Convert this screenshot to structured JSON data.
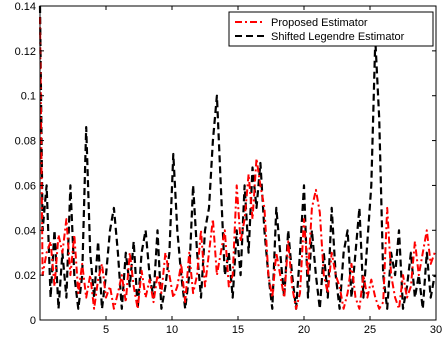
{
  "chart_data": {
    "type": "line",
    "title": "",
    "xlabel": "",
    "ylabel": "",
    "xlim": [
      0,
      30
    ],
    "ylim": [
      0,
      0.14
    ],
    "xticks": [
      5,
      10,
      15,
      20,
      25,
      30
    ],
    "yticks": [
      0,
      0.02,
      0.04,
      0.06,
      0.08,
      0.1,
      0.12,
      0.14
    ],
    "grid": false,
    "legend_position": "top-right",
    "series": [
      {
        "name": "Proposed Estimator",
        "color": "#ff0000",
        "dash": "dash-dot",
        "x": [
          0,
          0.2,
          0.5,
          0.8,
          1.1,
          1.4,
          1.7,
          2.0,
          2.3,
          2.6,
          2.9,
          3.2,
          3.5,
          3.8,
          4.1,
          4.4,
          4.7,
          5.0,
          5.3,
          5.6,
          5.9,
          6.2,
          6.5,
          6.8,
          7.1,
          7.4,
          7.7,
          8.0,
          8.3,
          8.6,
          8.9,
          9.2,
          9.5,
          9.8,
          10.1,
          10.4,
          10.7,
          11.0,
          11.3,
          11.6,
          11.9,
          12.2,
          12.5,
          12.8,
          13.1,
          13.4,
          13.7,
          14.0,
          14.3,
          14.6,
          14.9,
          15.2,
          15.5,
          15.8,
          16.1,
          16.4,
          16.7,
          17.0,
          17.3,
          17.6,
          17.9,
          18.2,
          18.5,
          18.8,
          19.1,
          19.4,
          19.7,
          20.0,
          20.3,
          20.6,
          20.9,
          21.2,
          21.5,
          21.8,
          22.1,
          22.4,
          22.7,
          23.0,
          23.3,
          23.6,
          23.9,
          24.2,
          24.5,
          24.8,
          25.1,
          25.4,
          25.7,
          26.0,
          26.3,
          26.6,
          26.9,
          27.2,
          27.5,
          27.8,
          28.1,
          28.4,
          28.7,
          29.0,
          29.3,
          29.6,
          29.9
        ],
        "y": [
          0.135,
          0.02,
          0.03,
          0.035,
          0.015,
          0.038,
          0.03,
          0.045,
          0.02,
          0.038,
          0.012,
          0.025,
          0.01,
          0.02,
          0.005,
          0.018,
          0.025,
          0.01,
          0.015,
          0.005,
          0.012,
          0.02,
          0.008,
          0.03,
          0.015,
          0.005,
          0.022,
          0.01,
          0.018,
          0.008,
          0.02,
          0.012,
          0.03,
          0.02,
          0.01,
          0.015,
          0.025,
          0.008,
          0.03,
          0.012,
          0.02,
          0.04,
          0.015,
          0.03,
          0.045,
          0.02,
          0.03,
          0.04,
          0.015,
          0.02,
          0.06,
          0.035,
          0.045,
          0.065,
          0.045,
          0.072,
          0.06,
          0.05,
          0.02,
          0.01,
          0.03,
          0.02,
          0.01,
          0.035,
          0.015,
          0.005,
          0.012,
          0.045,
          0.02,
          0.05,
          0.058,
          0.048,
          0.02,
          0.012,
          0.03,
          0.02,
          0.015,
          0.005,
          0.012,
          0.025,
          0.01,
          0.005,
          0.02,
          0.01,
          0.018,
          0.01,
          0.005,
          0.008,
          0.05,
          0.02,
          0.01,
          0.005,
          0.02,
          0.01,
          0.015,
          0.035,
          0.02,
          0.03,
          0.04,
          0.025,
          0.03
        ]
      },
      {
        "name": "Shifted Legendre Estimator",
        "color": "#000000",
        "dash": "dashed",
        "x": [
          0,
          0.2,
          0.5,
          0.8,
          1.1,
          1.4,
          1.7,
          2.0,
          2.3,
          2.6,
          2.9,
          3.2,
          3.5,
          3.8,
          4.1,
          4.4,
          4.7,
          5.0,
          5.3,
          5.6,
          5.9,
          6.2,
          6.5,
          6.8,
          7.1,
          7.4,
          7.7,
          8.0,
          8.3,
          8.6,
          8.9,
          9.2,
          9.5,
          9.8,
          10.1,
          10.4,
          10.7,
          11.0,
          11.3,
          11.6,
          11.9,
          12.2,
          12.5,
          12.8,
          13.1,
          13.4,
          13.7,
          14.0,
          14.3,
          14.6,
          14.9,
          15.2,
          15.5,
          15.8,
          16.1,
          16.4,
          16.7,
          17.0,
          17.3,
          17.6,
          17.9,
          18.2,
          18.5,
          18.8,
          19.1,
          19.4,
          19.7,
          20.0,
          20.3,
          20.6,
          20.9,
          21.2,
          21.5,
          21.8,
          22.1,
          22.4,
          22.7,
          23.0,
          23.3,
          23.6,
          23.9,
          24.2,
          24.5,
          24.8,
          25.1,
          25.4,
          25.7,
          26.0,
          26.3,
          26.6,
          26.9,
          27.2,
          27.5,
          27.8,
          28.1,
          28.4,
          28.7,
          29.0,
          29.3,
          29.6,
          29.9
        ],
        "y": [
          0.14,
          0.04,
          0.06,
          0.01,
          0.04,
          0.005,
          0.03,
          0.01,
          0.06,
          0.02,
          0.005,
          0.02,
          0.086,
          0.03,
          0.01,
          0.035,
          0.005,
          0.02,
          0.04,
          0.05,
          0.03,
          0.005,
          0.03,
          0.015,
          0.035,
          0.005,
          0.03,
          0.04,
          0.02,
          0.01,
          0.04,
          0.005,
          0.015,
          0.03,
          0.074,
          0.04,
          0.02,
          0.005,
          0.02,
          0.06,
          0.03,
          0.01,
          0.04,
          0.05,
          0.08,
          0.1,
          0.06,
          0.02,
          0.03,
          0.01,
          0.04,
          0.02,
          0.06,
          0.03,
          0.068,
          0.05,
          0.07,
          0.04,
          0.02,
          0.005,
          0.05,
          0.03,
          0.01,
          0.04,
          0.02,
          0.005,
          0.03,
          0.06,
          0.01,
          0.04,
          0.02,
          0.005,
          0.03,
          0.01,
          0.05,
          0.02,
          0.005,
          0.03,
          0.04,
          0.01,
          0.03,
          0.05,
          0.01,
          0.035,
          0.06,
          0.125,
          0.09,
          0.02,
          0.005,
          0.03,
          0.02,
          0.04,
          0.005,
          0.015,
          0.03,
          0.01,
          0.02,
          0.005,
          0.03,
          0.01,
          0.02
        ]
      }
    ]
  }
}
